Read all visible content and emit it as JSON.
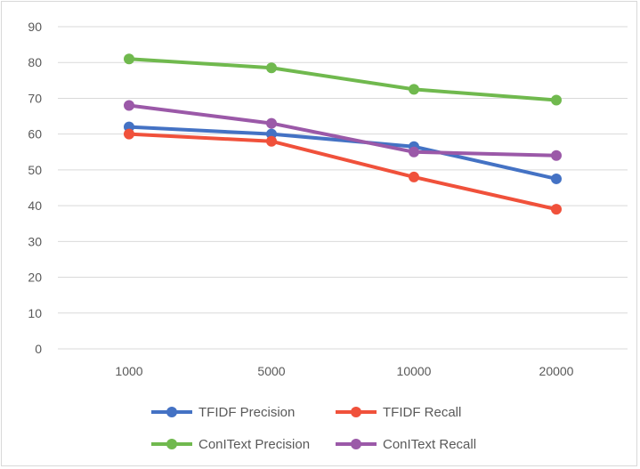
{
  "chart_data": {
    "type": "line",
    "title": "",
    "xlabel": "",
    "ylabel": "",
    "categories": [
      "1000",
      "5000",
      "10000",
      "20000"
    ],
    "ylim": [
      0,
      90
    ],
    "yticks": [
      "0",
      "10",
      "20",
      "30",
      "40",
      "50",
      "60",
      "70",
      "80",
      "90"
    ],
    "grid": "horizontal",
    "legend_position": "bottom",
    "series": [
      {
        "name": "TFIDF Precision",
        "color": "#4472c4",
        "values": [
          62,
          60,
          56.5,
          47.5
        ]
      },
      {
        "name": "TFIDF Recall",
        "color": "#f0513b",
        "values": [
          60,
          58,
          48,
          39
        ]
      },
      {
        "name": "ConIText Precision",
        "color": "#70b94e",
        "values": [
          81,
          78.5,
          72.5,
          69.5
        ]
      },
      {
        "name": "ConIText Recall",
        "color": "#9b59a8",
        "values": [
          68,
          63,
          55,
          54
        ]
      }
    ]
  }
}
